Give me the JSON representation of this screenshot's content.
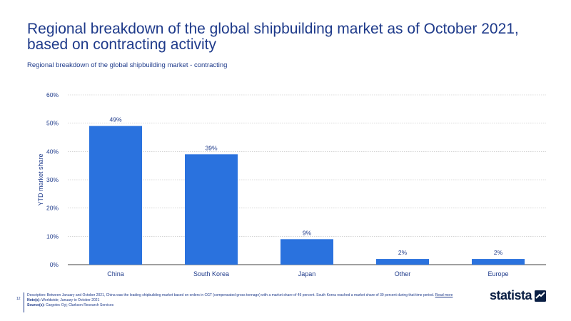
{
  "header": {
    "title": "Regional breakdown of the global shipbuilding market as of October 2021, based on contracting activity",
    "subtitle": "Regional breakdown of the global shipbuilding market - contracting"
  },
  "chart_data": {
    "type": "bar",
    "categories": [
      "China",
      "South Korea",
      "Japan",
      "Other",
      "Europe"
    ],
    "values": [
      49,
      39,
      9,
      2,
      2
    ],
    "value_labels": [
      "49%",
      "39%",
      "9%",
      "2%",
      "2%"
    ],
    "ylabel": "YTD market share",
    "xlabel": "",
    "ylim": [
      0,
      60
    ],
    "yticks": [
      0,
      10,
      20,
      30,
      40,
      50,
      60
    ],
    "ytick_labels": [
      "0%",
      "10%",
      "20%",
      "30%",
      "40%",
      "50%",
      "60%"
    ],
    "grid": true,
    "bar_color": "#2a72de"
  },
  "footer": {
    "page_number": "12",
    "description_label": "Description:",
    "description": "Between January and October 2021, China was the leading shipbuilding market based on orders in CGT (compensated gross tonnage) with a market share of 49 percent. South Korea reached a market share of 39 percent during that time period.",
    "read_more": "Read more",
    "notes_label": "Note(s):",
    "notes": "Worldwide; January to October 2021",
    "sources_label": "Source(s):",
    "sources": "Cargotec Oyj; Clarkson Research Services"
  },
  "logo": {
    "text": "statista"
  }
}
